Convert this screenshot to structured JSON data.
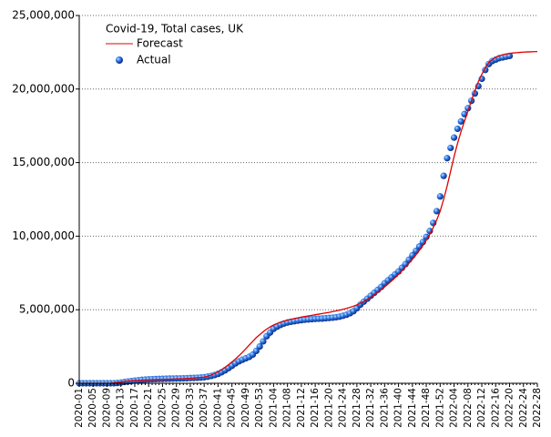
{
  "chart_data": {
    "type": "line",
    "title": "Covid-19, Total cases, UK",
    "categories": [
      "2020-01",
      null,
      null,
      null,
      "2020-05",
      null,
      null,
      null,
      "2020-09",
      null,
      null,
      null,
      "2020-13",
      null,
      null,
      null,
      "2020-17",
      null,
      null,
      null,
      "2020-21",
      null,
      null,
      null,
      "2020-25",
      null,
      null,
      null,
      "2020-29",
      null,
      null,
      null,
      "2020-33",
      null,
      null,
      null,
      "2020-37",
      null,
      null,
      null,
      "2020-41",
      null,
      null,
      null,
      "2020-45",
      null,
      null,
      null,
      "2020-49",
      null,
      null,
      null,
      "2020-53",
      null,
      null,
      null,
      "2021-04",
      null,
      null,
      null,
      "2021-08",
      null,
      null,
      null,
      "2021-12",
      null,
      null,
      null,
      "2021-16",
      null,
      null,
      null,
      "2021-20",
      null,
      null,
      null,
      "2021-24",
      null,
      null,
      null,
      "2021-28",
      null,
      null,
      null,
      "2021-32",
      null,
      null,
      null,
      "2021-36",
      null,
      null,
      null,
      "2021-40",
      null,
      null,
      null,
      "2021-44",
      null,
      null,
      null,
      "2021-48",
      null,
      null,
      null,
      "2021-52",
      null,
      null,
      null,
      "2022-04",
      null,
      null,
      null,
      "2022-08",
      null,
      null,
      null,
      "2022-12",
      null,
      null,
      null,
      "2022-16",
      null,
      null,
      null,
      "2022-20",
      null,
      null,
      null,
      "2022-24",
      null,
      null,
      null,
      "2022-28"
    ],
    "series": [
      {
        "name": "Forecast",
        "color": "#e00000",
        "style": "line",
        "values": [
          0,
          0,
          0,
          0,
          0,
          0,
          0,
          0,
          0,
          10000,
          30000,
          60000,
          90000,
          120000,
          150000,
          170000,
          190000,
          200000,
          210000,
          220000,
          230000,
          240000,
          245000,
          250000,
          255000,
          260000,
          270000,
          280000,
          290000,
          300000,
          310000,
          325000,
          340000,
          355000,
          375000,
          395000,
          420000,
          480000,
          560000,
          660000,
          780000,
          920000,
          1080000,
          1260000,
          1450000,
          1650000,
          1870000,
          2100000,
          2350000,
          2600000,
          2850000,
          3100000,
          3300000,
          3500000,
          3680000,
          3830000,
          3960000,
          4060000,
          4150000,
          4220000,
          4290000,
          4350000,
          4400000,
          4450000,
          4500000,
          4540000,
          4580000,
          4620000,
          4660000,
          4700000,
          4740000,
          4780000,
          4820000,
          4870000,
          4920000,
          4970000,
          5030000,
          5090000,
          5160000,
          5240000,
          5330000,
          5440000,
          5560000,
          5700000,
          5850000,
          6010000,
          6180000,
          6360000,
          6550000,
          6750000,
          6960000,
          7180000,
          7410000,
          7650000,
          7900000,
          8160000,
          8430000,
          8720000,
          9030000,
          9360000,
          9720000,
          10120000,
          10580000,
          11100000,
          11700000,
          12500000,
          13400000,
          14400000,
          15400000,
          16300000,
          17100000,
          17800000,
          18500000,
          19200000,
          19900000,
          20500000,
          21000000,
          21450000,
          21800000,
          22000000,
          22150000,
          22250000,
          22330000,
          22380000,
          22420000,
          22450000,
          22470000,
          22490000,
          22510000,
          22520000,
          22530000,
          22540000,
          22550000
        ]
      },
      {
        "name": "Actual",
        "color": "#1f5fd6",
        "style": "markers",
        "values": [
          0,
          0,
          0,
          0,
          0,
          0,
          0,
          0,
          0,
          1000,
          5000,
          20000,
          50000,
          90000,
          120000,
          150000,
          180000,
          200000,
          230000,
          250000,
          265000,
          275000,
          285000,
          295000,
          300000,
          310000,
          315000,
          320000,
          325000,
          330000,
          335000,
          345000,
          355000,
          365000,
          375000,
          390000,
          410000,
          450000,
          500000,
          560000,
          640000,
          750000,
          880000,
          1030000,
          1190000,
          1350000,
          1490000,
          1600000,
          1700000,
          1800000,
          1950000,
          2200000,
          2500000,
          2850000,
          3200000,
          3450000,
          3700000,
          3850000,
          3970000,
          4060000,
          4130000,
          4180000,
          4220000,
          4260000,
          4290000,
          4320000,
          4340000,
          4360000,
          4380000,
          4390000,
          4400000,
          4420000,
          4440000,
          4460000,
          4490000,
          4530000,
          4590000,
          4660000,
          4760000,
          4900000,
          5100000,
          5350000,
          5550000,
          5750000,
          5950000,
          6150000,
          6350000,
          6550000,
          6800000,
          7000000,
          7200000,
          7400000,
          7600000,
          7850000,
          8100000,
          8400000,
          8700000,
          9000000,
          9300000,
          9600000,
          9950000,
          10350000,
          10900000,
          11700000,
          12700000,
          14100000,
          15300000,
          16000000,
          16700000,
          17300000,
          17800000,
          18300000,
          18700000,
          19200000,
          19700000,
          20200000,
          20700000,
          21300000,
          21700000,
          21900000,
          22000000,
          22100000,
          22150000,
          22200000,
          22250000,
          null,
          null,
          null,
          null,
          null,
          null,
          null,
          null
        ]
      }
    ],
    "ylim": [
      0,
      25000000
    ],
    "yticks": [
      {
        "value": 0,
        "label": "0"
      },
      {
        "value": 5000000,
        "label": "5,000,000"
      },
      {
        "value": 10000000,
        "label": "10,000,000"
      },
      {
        "value": 15000000,
        "label": "15,000,000"
      },
      {
        "value": 20000000,
        "label": "20,000,000"
      },
      {
        "value": 25000000,
        "label": "25,000,000"
      }
    ],
    "grid": true,
    "legend": "top-left"
  }
}
